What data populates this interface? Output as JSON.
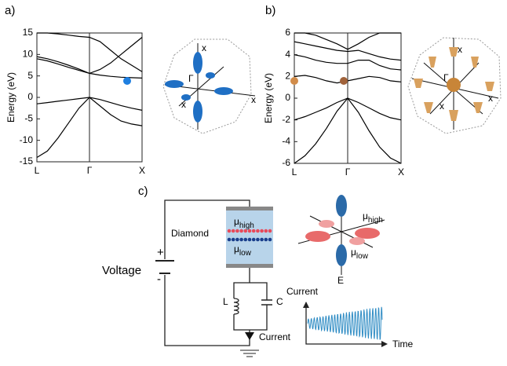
{
  "chart_data": [
    {
      "type": "line",
      "ylabel": "Energy (eV)",
      "color": "#000000",
      "categories": [
        "L",
        null,
        null,
        null,
        null,
        "Γ",
        null,
        null,
        null,
        null,
        "X"
      ],
      "ylim": [
        -15,
        15
      ],
      "yticks": [
        -15,
        -10,
        -5,
        0,
        5,
        10,
        15
      ],
      "series": [
        {
          "values": [
            -14,
            -12.5,
            -9.5,
            -6,
            -2.5,
            0,
            -2,
            -4,
            -5.5,
            -6.2,
            -6.6
          ]
        },
        {
          "values": [
            -1.5,
            -1.2,
            -0.9,
            -0.6,
            -0.3,
            0,
            -0.5,
            -1.2,
            -1.9,
            -2.5,
            -3
          ]
        },
        {
          "values": [
            9,
            8.5,
            7.8,
            7,
            6.3,
            5.6,
            5.2,
            4.9,
            4.7,
            4.6,
            4.5
          ]
        },
        {
          "values": [
            9.5,
            9,
            8.3,
            7.5,
            6.6,
            5.6,
            6.5,
            8,
            10,
            12,
            14
          ]
        },
        {
          "values": [
            15,
            15,
            14.8,
            14.5,
            14.2,
            14,
            13,
            11,
            9,
            7.5,
            6
          ]
        }
      ]
    },
    {
      "type": "line",
      "ylabel": "Energy (eV)",
      "color": "#000000",
      "categories": [
        "L",
        null,
        null,
        null,
        null,
        "Γ",
        null,
        null,
        null,
        null,
        "X"
      ],
      "ylim": [
        -6,
        6
      ],
      "yticks": [
        -6,
        -4,
        -2,
        0,
        2,
        4,
        6
      ],
      "series": [
        {
          "values": [
            -6,
            -5.3,
            -4.2,
            -2.8,
            -1.2,
            0,
            -1.3,
            -3,
            -4.5,
            -5.5,
            -6
          ]
        },
        {
          "values": [
            -2,
            -1.7,
            -1.3,
            -0.9,
            -0.4,
            0,
            -0.4,
            -0.9,
            -1.4,
            -1.8,
            -2
          ]
        },
        {
          "values": [
            2,
            2.1,
            1.9,
            1.6,
            1.4,
            1.6,
            1.8,
            2,
            1.9,
            1.6,
            1.5
          ]
        },
        {
          "values": [
            4,
            3.8,
            3.5,
            3.3,
            3.2,
            3.2,
            3.5,
            3.5,
            3,
            2.7,
            2.6
          ]
        },
        {
          "values": [
            5.2,
            5,
            4.8,
            4.6,
            4.4,
            4.3,
            4.4,
            4.1,
            3.8,
            3.6,
            3.5
          ]
        },
        {
          "values": [
            6,
            6,
            5.8,
            5.4,
            5,
            4.5,
            5,
            5.6,
            6,
            6,
            6
          ]
        }
      ]
    }
  ],
  "panels": {
    "a": "a)",
    "b": "b)",
    "c": "c)"
  },
  "insets": {
    "axis_x": "x",
    "gamma": "Γ"
  },
  "circuit": {
    "sample": "Diamond",
    "mu": "μ",
    "high": "high",
    "low": "low",
    "voltage": "Voltage",
    "plus": "+",
    "minus": "-",
    "inductor": "L",
    "capacitor": "C",
    "current": "Current",
    "field": "E",
    "plot_y": "Current",
    "plot_x": "Time"
  }
}
